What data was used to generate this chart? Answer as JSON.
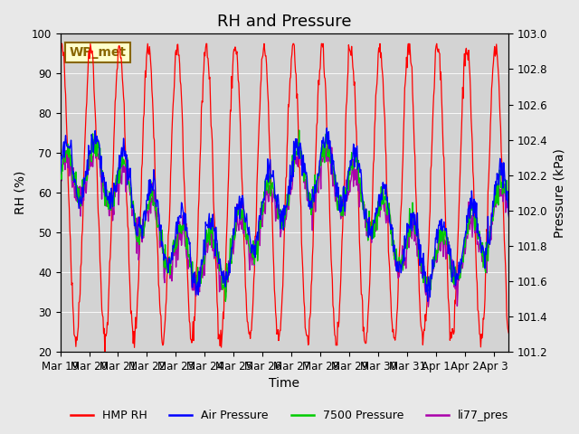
{
  "title": "RH and Pressure",
  "xlabel": "Time",
  "ylabel_left": "RH (%)",
  "ylabel_right": "Pressure (kPa)",
  "ylim_left": [
    20,
    100
  ],
  "ylim_right": [
    101.2,
    103.0
  ],
  "background_color": "#e8e8e8",
  "plot_bg_color": "#d3d3d3",
  "legend_entries": [
    "HMP RH",
    "Air Pressure",
    "7500 Pressure",
    "li77_pres"
  ],
  "line_colors": [
    "#ff0000",
    "#0000ff",
    "#00cc00",
    "#aa00aa"
  ],
  "annotation_text": "WP_met",
  "annotation_color": "#886600",
  "annotation_bg": "#ffffcc",
  "x_tick_labels": [
    "Mar 19",
    "Mar 20",
    "Mar 21",
    "Mar 22",
    "Mar 23",
    "Mar 24",
    "Mar 25",
    "Mar 26",
    "Mar 27",
    "Mar 28",
    "Mar 29",
    "Mar 30",
    "Mar 31",
    "Apr 1",
    "Apr 2",
    "Apr 3"
  ],
  "rh_yticks": [
    20,
    30,
    40,
    50,
    60,
    70,
    80,
    90,
    100
  ],
  "p_yticks": [
    101.2,
    101.4,
    101.6,
    101.8,
    102.0,
    102.2,
    102.4,
    102.6,
    102.8,
    103.0
  ],
  "title_fontsize": 13,
  "label_fontsize": 10,
  "tick_fontsize": 8.5
}
